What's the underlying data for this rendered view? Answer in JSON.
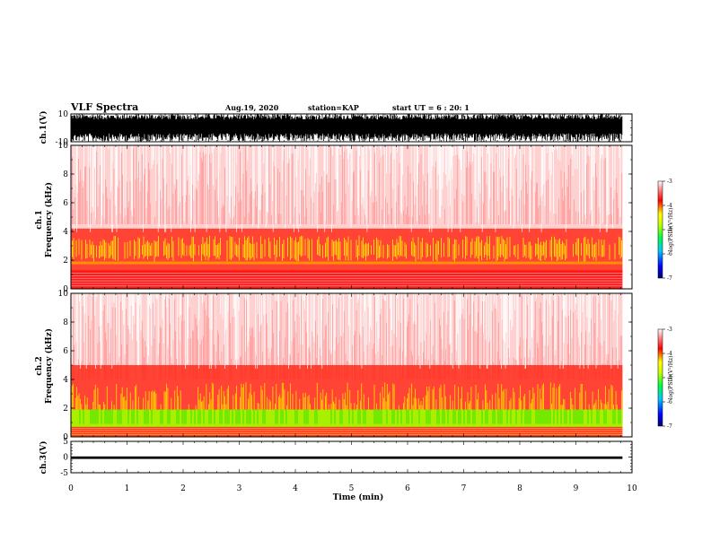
{
  "header": {
    "title": "VLF Spectra",
    "date": "Aug.19, 2020",
    "station": "station=KAP",
    "start": "start  UT =   6 : 20: 1"
  },
  "chart_data": [
    {
      "type": "line",
      "panel": "ch1-waveform",
      "ylabel": "ch.1(V)",
      "yticks": [
        "10",
        "-10"
      ],
      "ylim": [
        -10,
        10
      ],
      "xlim": [
        0,
        10
      ],
      "description_series": {
        "name": "",
        "x_range": [
          0,
          9.83
        ],
        "y_range": [
          -10,
          10
        ]
      }
    },
    {
      "type": "heatmap",
      "panel": "ch1-spectrogram",
      "ylabel": "ch.1\nFrequency  (kHz)",
      "ylabel_lines": [
        "ch.1",
        "Frequency  (kHz)"
      ],
      "yticks": [
        "0",
        "2",
        "4",
        "6",
        "8",
        "10"
      ],
      "ylim": [
        0,
        10
      ],
      "xlim": [
        0,
        10
      ],
      "colorbar": {
        "label": "log(PSD)(V²/Hz)",
        "ticks": [
          "-3",
          "-4",
          "-5",
          "-6",
          "-7"
        ],
        "range": [
          -7,
          -3
        ]
      }
    },
    {
      "type": "heatmap",
      "panel": "ch2-spectrogram",
      "ylabel_lines": [
        "ch.2",
        "Frequency  (kHz)"
      ],
      "yticks": [
        "0",
        "2",
        "4",
        "6",
        "8",
        "10"
      ],
      "ylim": [
        0,
        10
      ],
      "xlim": [
        0,
        10
      ],
      "colorbar": {
        "label": "log(PSD)(V²/Hz)",
        "ticks": [
          "-3",
          "-4",
          "-5",
          "-6",
          "-7"
        ],
        "range": [
          -7,
          -3
        ]
      }
    },
    {
      "type": "line",
      "panel": "ch3-waveform",
      "ylabel": "ch.3(V)",
      "yticks": [
        "5",
        "0",
        "-5"
      ],
      "ylim": [
        -5,
        5
      ],
      "xlim": [
        0,
        10
      ],
      "xlabel": "Time  (min)",
      "xticks": [
        "0",
        "1",
        "2",
        "3",
        "4",
        "5",
        "6",
        "7",
        "8",
        "9",
        "10"
      ]
    }
  ]
}
